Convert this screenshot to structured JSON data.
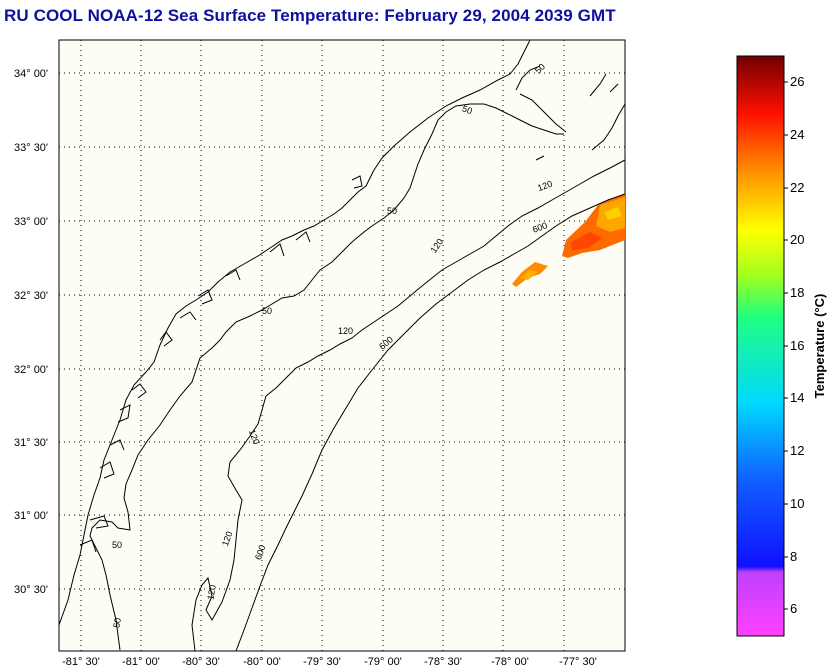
{
  "title": "RU COOL  NOAA-12  Sea Surface Temperature:  February 29, 2004 2039 GMT",
  "map": {
    "lat_labels": [
      "34° 00'",
      "33° 30'",
      "33° 00'",
      "32° 30'",
      "32° 00'",
      "31° 30'",
      "31° 00'",
      "30° 30'"
    ],
    "lon_labels": [
      "-81° 30'",
      "-81° 00'",
      "-80° 30'",
      "-80° 00'",
      "-79° 30'",
      "-79° 00'",
      "-78° 30'",
      "-78° 00'",
      "-77° 30'"
    ],
    "contour_labels": [
      "50",
      "50",
      "50",
      "50",
      "50",
      "50",
      "120",
      "120",
      "120",
      "120",
      "120",
      "600",
      "600",
      "600"
    ],
    "background": "#fdfdf6",
    "grid": "dotted"
  },
  "colorbar": {
    "title": "Temperature (°C)",
    "ticks": [
      "26",
      "24",
      "22",
      "20",
      "18",
      "16",
      "14",
      "12",
      "10",
      "8",
      "6"
    ],
    "min": 5,
    "max": 27
  }
}
